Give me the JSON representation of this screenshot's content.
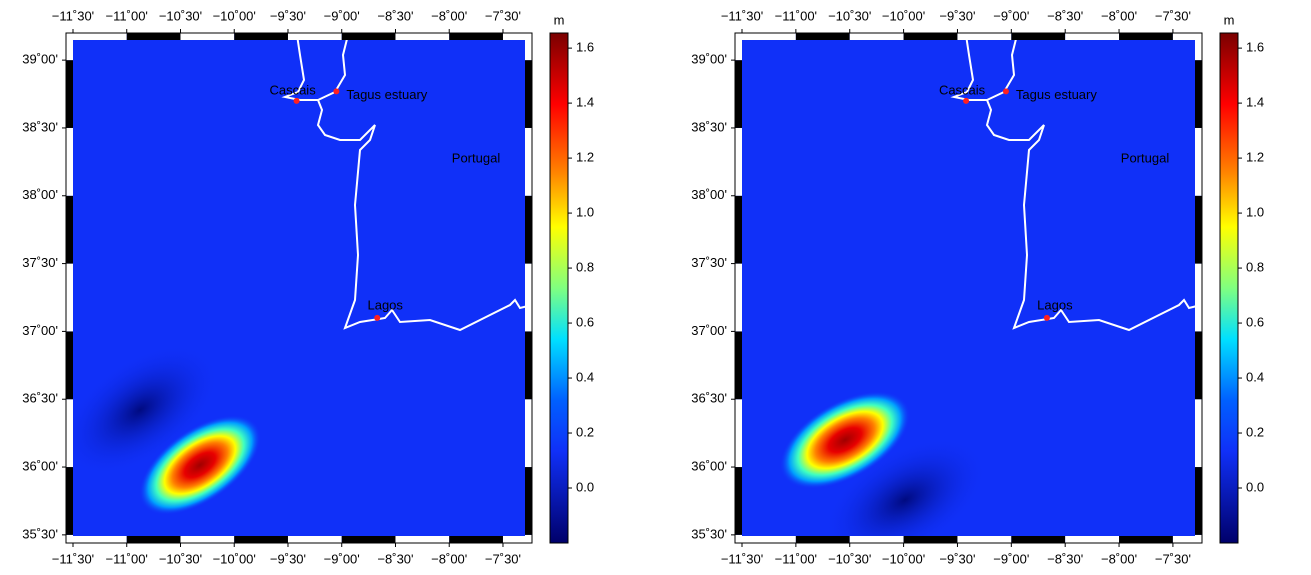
{
  "panels": [
    {
      "xlim": [
        -11.565,
        -7.23
      ],
      "ylim": [
        35.44,
        39.2
      ],
      "xticks": [
        {
          "value": -11.5,
          "label": "−11˚30'"
        },
        {
          "value": -11,
          "label": "−11˚00'"
        },
        {
          "value": -10.5,
          "label": "−10˚30'"
        },
        {
          "value": -10,
          "label": "−10˚00'"
        },
        {
          "value": -9.5,
          "label": "−9˚30'"
        },
        {
          "value": -9,
          "label": "−9˚00'"
        },
        {
          "value": -8.5,
          "label": "−8˚30'"
        },
        {
          "value": -8,
          "label": "−8˚00'"
        },
        {
          "value": -7.5,
          "label": "−7˚30'"
        }
      ],
      "yticks": [
        {
          "value": 35.5,
          "label": "35˚30'"
        },
        {
          "value": 36,
          "label": "36˚00'"
        },
        {
          "value": 36.5,
          "label": "36˚30'"
        },
        {
          "value": 37,
          "label": "37˚00'"
        },
        {
          "value": 37.5,
          "label": "37˚30'"
        },
        {
          "value": 38,
          "label": "38˚00'"
        },
        {
          "value": 38.5,
          "label": "38˚30'"
        },
        {
          "value": 39,
          "label": "39˚00'"
        }
      ],
      "region_label": "Portugal",
      "places": [
        {
          "name": "Cascais",
          "lon": -9.42,
          "lat": 38.7
        },
        {
          "name": "Tagus estuary",
          "lon": -9.05,
          "lat": 38.77
        },
        {
          "name": "Lagos",
          "lon": -8.67,
          "lat": 37.1
        }
      ],
      "colorbar": {
        "unit": "m",
        "lim": [
          -0.2,
          1.655
        ],
        "ticks": [
          {
            "value": 0,
            "label": "0.0"
          },
          0.2,
          0.4,
          0.6,
          0.8,
          {
            "value": 1,
            "label": "1.0"
          },
          1.2,
          1.4,
          1.6
        ]
      }
    },
    {
      "xlim": [
        -11.565,
        -7.23
      ],
      "ylim": [
        35.44,
        39.2
      ],
      "xticks": [
        {
          "value": -11.5,
          "label": "−11˚30'"
        },
        {
          "value": -11,
          "label": "−11˚00'"
        },
        {
          "value": -10.5,
          "label": "−10˚30'"
        },
        {
          "value": -10,
          "label": "−10˚00'"
        },
        {
          "value": -9.5,
          "label": "−9˚30'"
        },
        {
          "value": -9,
          "label": "−9˚00'"
        },
        {
          "value": -8.5,
          "label": "−8˚30'"
        },
        {
          "value": -8,
          "label": "−8˚00'"
        },
        {
          "value": -7.5,
          "label": "−7˚30'"
        }
      ],
      "yticks": [
        {
          "value": 35.5,
          "label": "35˚30'"
        },
        {
          "value": 36,
          "label": "36˚00'"
        },
        {
          "value": 36.5,
          "label": "36˚30'"
        },
        {
          "value": 37,
          "label": "37˚00'"
        },
        {
          "value": 37.5,
          "label": "37˚30'"
        },
        {
          "value": 38,
          "label": "38˚00'"
        },
        {
          "value": 38.5,
          "label": "38˚30'"
        },
        {
          "value": 39,
          "label": "39˚00'"
        }
      ],
      "region_label": "Portugal",
      "places": [
        {
          "name": "Cascais",
          "lon": -9.42,
          "lat": 38.7
        },
        {
          "name": "Tagus estuary",
          "lon": -9.05,
          "lat": 38.77
        },
        {
          "name": "Lagos",
          "lon": -8.67,
          "lat": 37.1
        }
      ],
      "colorbar": {
        "unit": "m",
        "lim": [
          -0.2,
          1.655
        ],
        "ticks": [
          {
            "value": 0,
            "label": "0.0"
          },
          0.2,
          0.4,
          0.6,
          0.8,
          {
            "value": 1,
            "label": "1.0"
          },
          1.2,
          1.4,
          1.6
        ]
      }
    }
  ]
}
